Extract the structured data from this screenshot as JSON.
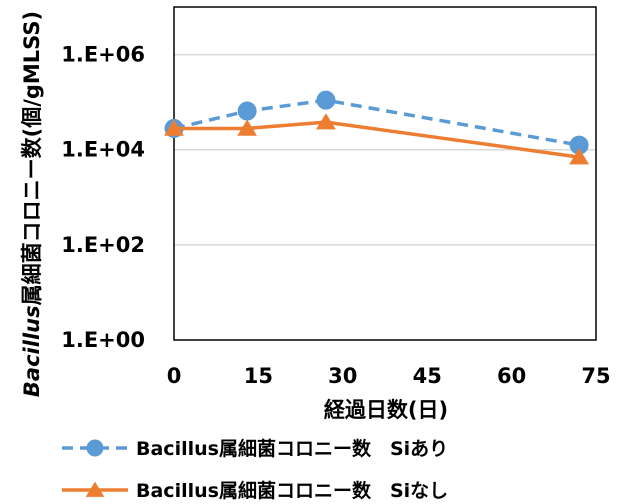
{
  "chart_data": {
    "type": "line",
    "ylabel_italic": "Bacillus",
    "ylabel_rest": "属細菌コロニー数(個/gMLSS)",
    "xlabel": "経過日数(日)",
    "xlim": [
      0,
      75
    ],
    "xticks": [
      0,
      15,
      30,
      45,
      60,
      75
    ],
    "y_scale": "log10",
    "ylim": [
      1,
      10000000
    ],
    "yticks": [
      {
        "value": 1,
        "label": "1.E+00"
      },
      {
        "value": 100,
        "label": "1.E+02"
      },
      {
        "value": 10000,
        "label": "1.E+04"
      },
      {
        "value": 1000000,
        "label": "1.E+06"
      }
    ],
    "grid": "horizontal major gridlines",
    "legend_position": "bottom",
    "series": [
      {
        "name": "Bacillus属細菌コロニー数　Siあり",
        "color": "#5B9BD5",
        "line_style": "dashed",
        "marker": "circle",
        "x": [
          0,
          13,
          27,
          72
        ],
        "y": [
          28000,
          65000,
          110000,
          12500
        ]
      },
      {
        "name": "Bacillus属細菌コロニー数　Siなし",
        "color": "#ED7D31",
        "line_style": "solid",
        "marker": "triangle",
        "x": [
          0,
          13,
          27,
          72
        ],
        "y": [
          28000,
          28000,
          38000,
          7000
        ]
      }
    ]
  }
}
